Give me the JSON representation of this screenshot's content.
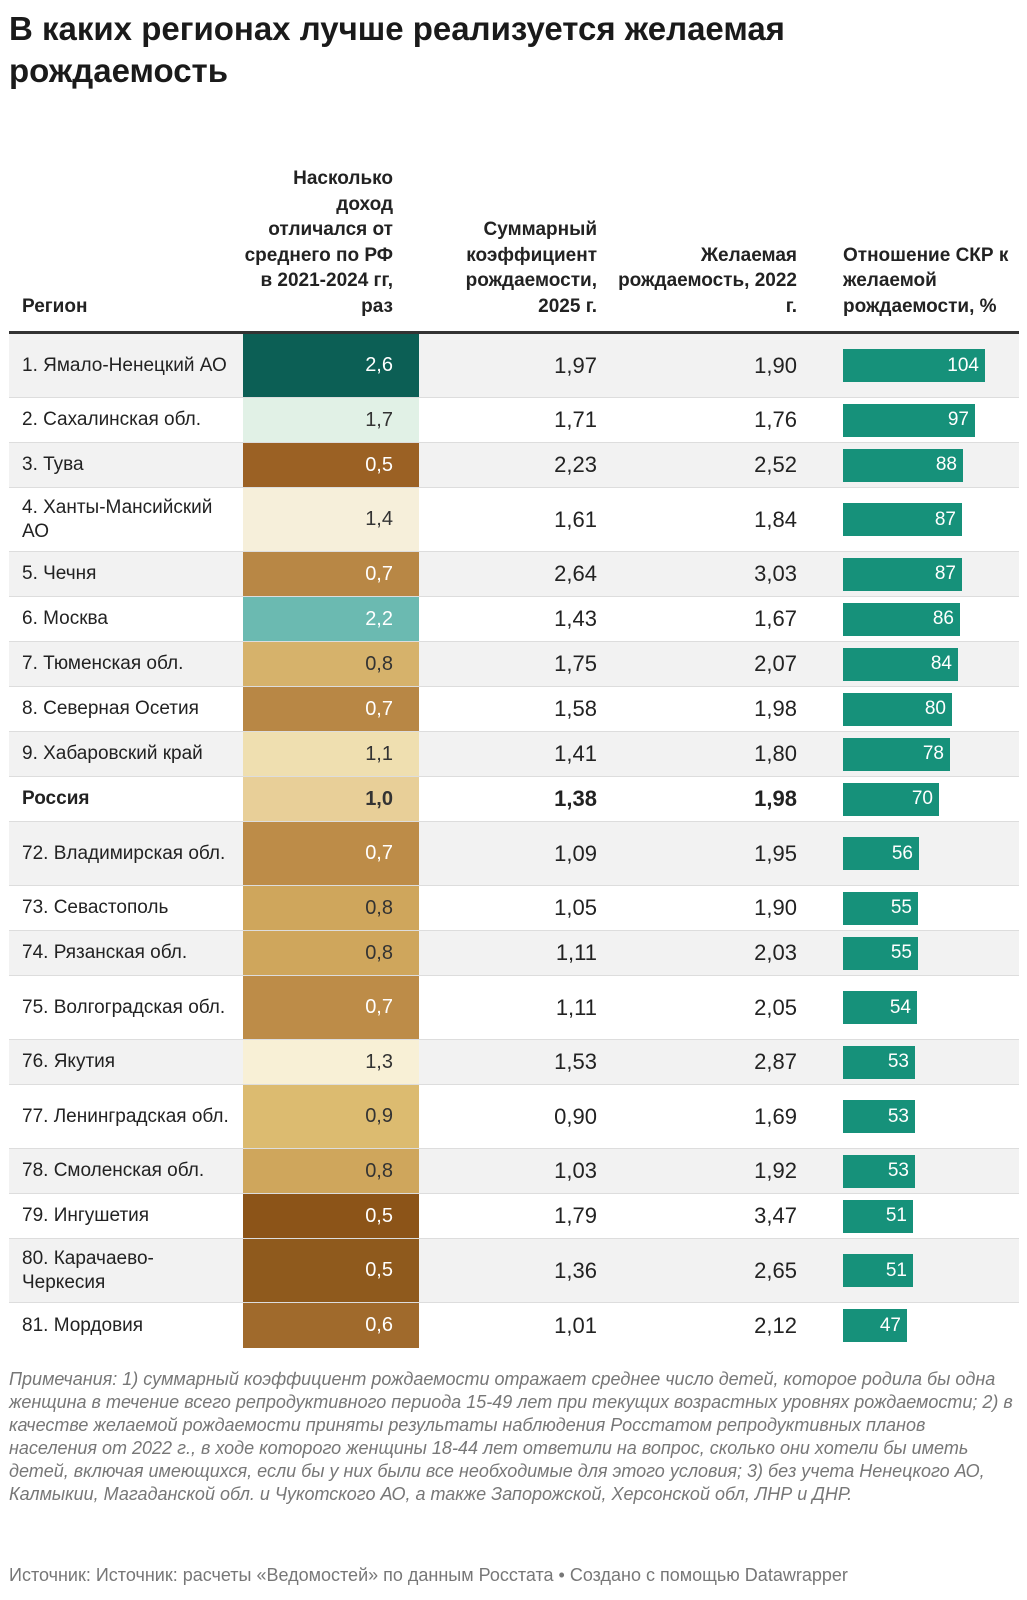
{
  "title": "В каких регионах лучше реализуется желаемая рождаемость",
  "columns": {
    "region": "Регион",
    "income": "Насколько доход отличался от среднего по РФ в 2021-2024 гг, раз",
    "tfr": "Суммарный коэффициент рождаемости, 2025 г.",
    "desired": "Желаемая рождаемость, 2022 г.",
    "ratio": "Отношение СКР к желаемой рождаемости, %"
  },
  "ratio_scale_max": 104,
  "rows": [
    {
      "region": "1. Ямало-Ненецкий АО",
      "income": "2,6",
      "income_color": "#0c5f55",
      "tfr": "1,97",
      "desired": "1,90",
      "ratio": 104
    },
    {
      "region": "2. Сахалинская обл.",
      "income": "1,7",
      "income_color": "#e1f1e6",
      "tfr": "1,71",
      "desired": "1,76",
      "ratio": 97
    },
    {
      "region": "3. Тува",
      "income": "0,5",
      "income_color": "#9b6124",
      "tfr": "2,23",
      "desired": "2,52",
      "ratio": 88
    },
    {
      "region": "4. Ханты-Мансийский АО",
      "income": "1,4",
      "income_color": "#f6efda",
      "tfr": "1,61",
      "desired": "1,84",
      "ratio": 87
    },
    {
      "region": "5. Чечня",
      "income": "0,7",
      "income_color": "#b88745",
      "tfr": "2,64",
      "desired": "3,03",
      "ratio": 87
    },
    {
      "region": "6. Москва",
      "income": "2,2",
      "income_color": "#6bbab1",
      "tfr": "1,43",
      "desired": "1,67",
      "ratio": 86
    },
    {
      "region": "7. Тюменская обл.",
      "income": "0,8",
      "income_color": "#d6b26b",
      "tfr": "1,75",
      "desired": "2,07",
      "ratio": 84
    },
    {
      "region": "8. Северная Осетия",
      "income": "0,7",
      "income_color": "#b88745",
      "tfr": "1,58",
      "desired": "1,98",
      "ratio": 80
    },
    {
      "region": "9. Хабаровский край",
      "income": "1,1",
      "income_color": "#efdfb0",
      "tfr": "1,41",
      "desired": "1,80",
      "ratio": 78
    },
    {
      "region": "Россия",
      "income": "1,0",
      "income_color": "#e8cf98",
      "tfr": "1,38",
      "desired": "1,98",
      "ratio": 70,
      "bold": true
    },
    {
      "region": "72. Владимирская обл.",
      "income": "0,7",
      "income_color": "#bd8c48",
      "tfr": "1,09",
      "desired": "1,95",
      "ratio": 56
    },
    {
      "region": "73. Севастополь",
      "income": "0,8",
      "income_color": "#cfa65c",
      "tfr": "1,05",
      "desired": "1,90",
      "ratio": 55
    },
    {
      "region": "74. Рязанская обл.",
      "income": "0,8",
      "income_color": "#cfa65c",
      "tfr": "1,11",
      "desired": "2,03",
      "ratio": 55
    },
    {
      "region": "75. Волгоградская обл.",
      "income": "0,7",
      "income_color": "#bd8c48",
      "tfr": "1,11",
      "desired": "2,05",
      "ratio": 54
    },
    {
      "region": "76. Якутия",
      "income": "1,3",
      "income_color": "#f8f0d6",
      "tfr": "1,53",
      "desired": "2,87",
      "ratio": 53
    },
    {
      "region": "77. Ленинградская обл.",
      "income": "0,9",
      "income_color": "#dcbb70",
      "tfr": "0,90",
      "desired": "1,69",
      "ratio": 53
    },
    {
      "region": "78. Смоленская обл.",
      "income": "0,8",
      "income_color": "#cfa65c",
      "tfr": "1,03",
      "desired": "1,92",
      "ratio": 53
    },
    {
      "region": "79. Ингушетия",
      "income": "0,5",
      "income_color": "#8c5418",
      "tfr": "1,79",
      "desired": "3,47",
      "ratio": 51
    },
    {
      "region": "80. Карачаево-Черкесия",
      "income": "0,5",
      "income_color": "#8f5a1d",
      "tfr": "1,36",
      "desired": "2,65",
      "ratio": 51
    },
    {
      "region": "81. Мордовия",
      "income": "0,6",
      "income_color": "#a06a2c",
      "tfr": "1,01",
      "desired": "2,12",
      "ratio": 47
    }
  ],
  "notes": "Примечания: 1) суммарный коэффициент рождаемости отражает среднее число детей, которое родила бы одна женщина в течение всего репродуктивного периода 15-49 лет при текущих возрастных уровнях рождаемости; 2) в качестве желаемой рождаемости приняты результаты наблюдения Росстатом репродуктивных планов населения от 2022 г., в ходе которого женщины 18-44 лет ответили на вопрос, сколько они хотели бы иметь детей, включая имеющихся, если бы у них были все необходимые для этого условия; 3) без учета Ненецкого АО, Калмыкии, Магаданской обл. и Чукотского АО, а также Запорожской, Херсонской обл, ЛНР и ДНР.",
  "source": "Источник: Источник: расчеты «Ведомостей» по данным Росстата • Создано с помощью Datawrapper"
}
